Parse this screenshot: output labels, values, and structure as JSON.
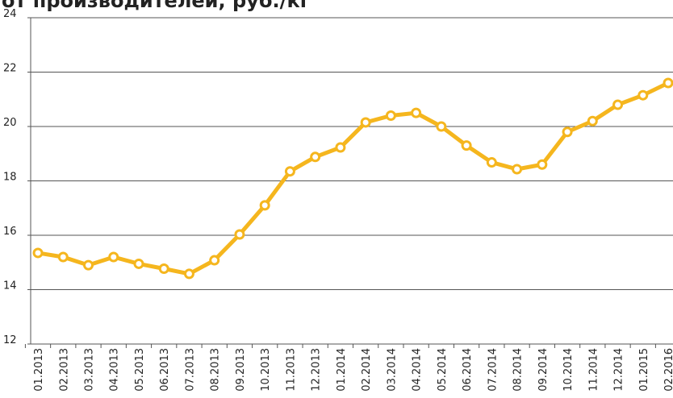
{
  "chart_data": {
    "type": "line",
    "title": "от производителей, руб./кг",
    "categories": [
      "01.2013",
      "02.2013",
      "03.2013",
      "04.2013",
      "05.2013",
      "06.2013",
      "07.2013",
      "08.2013",
      "09.2013",
      "10.2013",
      "11.2013",
      "12.2013",
      "01.2014",
      "02.2014",
      "03.2014",
      "04.2014",
      "05.2014",
      "06.2014",
      "07.2014",
      "08.2014",
      "09.2014",
      "10.2014",
      "11.2014",
      "12.2014",
      "01.2015",
      "02.2016"
    ],
    "series": [
      {
        "name": "",
        "color": "#f5b61e",
        "values": [
          15.35,
          15.2,
          14.9,
          15.2,
          14.95,
          14.77,
          14.58,
          15.08,
          16.03,
          17.1,
          18.35,
          18.88,
          19.23,
          20.15,
          20.4,
          20.5,
          20.0,
          19.3,
          18.68,
          18.43,
          18.6,
          19.8,
          20.2,
          20.8,
          21.15,
          21.6
        ]
      }
    ],
    "ylim": [
      12,
      24
    ],
    "yticks": [
      12,
      14,
      16,
      18,
      20,
      22,
      24
    ],
    "grid": true
  }
}
